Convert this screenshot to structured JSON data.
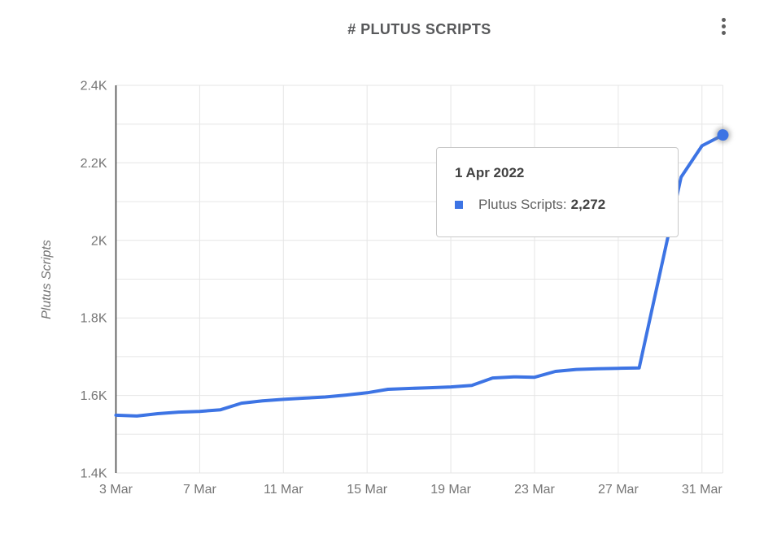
{
  "header": {
    "title": "# PLUTUS SCRIPTS",
    "menu_icon": "kebab-menu-icon"
  },
  "chart_data": {
    "type": "line",
    "title": "# PLUTUS SCRIPTS",
    "xlabel": "",
    "ylabel": "Plutus Scripts",
    "x": [
      "3 Mar",
      "4 Mar",
      "5 Mar",
      "6 Mar",
      "7 Mar",
      "8 Mar",
      "9 Mar",
      "10 Mar",
      "11 Mar",
      "12 Mar",
      "13 Mar",
      "14 Mar",
      "15 Mar",
      "16 Mar",
      "17 Mar",
      "18 Mar",
      "19 Mar",
      "20 Mar",
      "21 Mar",
      "22 Mar",
      "23 Mar",
      "24 Mar",
      "25 Mar",
      "26 Mar",
      "27 Mar",
      "28 Mar",
      "29 Mar",
      "30 Mar",
      "31 Mar",
      "1 Apr"
    ],
    "series": [
      {
        "name": "Plutus Scripts",
        "color": "#3d74e4",
        "values": [
          1549,
          1547,
          1553,
          1557,
          1559,
          1563,
          1580,
          1586,
          1590,
          1593,
          1596,
          1601,
          1607,
          1616,
          1618,
          1620,
          1622,
          1626,
          1645,
          1648,
          1647,
          1662,
          1667,
          1669,
          1670,
          1671,
          1917,
          2163,
          2244,
          2272
        ]
      }
    ],
    "xtick_labels": [
      "3 Mar",
      "7 Mar",
      "11 Mar",
      "15 Mar",
      "19 Mar",
      "23 Mar",
      "27 Mar",
      "31 Mar"
    ],
    "xtick_indices": [
      0,
      4,
      8,
      12,
      16,
      20,
      24,
      28
    ],
    "ytick_labels": [
      "1.4K",
      "1.6K",
      "1.8K",
      "2K",
      "2.2K",
      "2.4K"
    ],
    "ytick_values": [
      1400,
      1600,
      1800,
      2000,
      2200,
      2400
    ],
    "ylim": [
      1400,
      2400
    ],
    "grid_step": 100,
    "grid": true,
    "legend_position": "none",
    "last_point_highlighted": true
  },
  "tooltip": {
    "date": "1 Apr 2022",
    "series_label": "Plutus Scripts:",
    "value": "2,272",
    "marker_color": "#3d74e4"
  },
  "colors": {
    "line": "#3d74e4",
    "grid": "#e6e6e6",
    "y_axis_line": "#474747",
    "tick_text": "#757575",
    "title_text": "#58595b",
    "tooltip_border": "#c9c9c9",
    "background": "#ffffff"
  }
}
